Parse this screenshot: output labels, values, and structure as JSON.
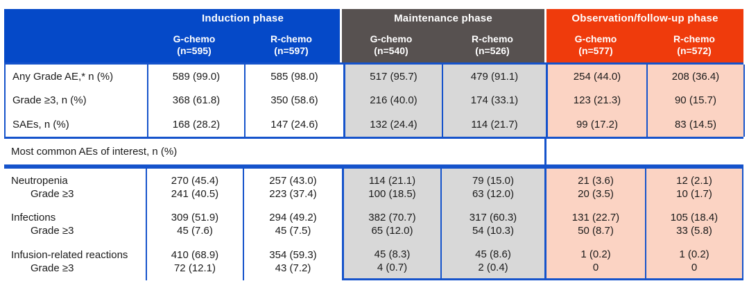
{
  "table": {
    "colors": {
      "induction_header": "#0549c8",
      "maintenance_header": "#575150",
      "observation_header": "#ef3b0c",
      "maintenance_cell": "#d8d8d8",
      "observation_cell": "#fbd3c3",
      "border_line": "#1553cb",
      "header_text": "#ffffff",
      "body_text": "#1a1a1a"
    },
    "phases": [
      {
        "name": "Induction phase",
        "columns": [
          {
            "arm": "G-chemo",
            "n": "(n=595)"
          },
          {
            "arm": "R-chemo",
            "n": "(n=597)"
          }
        ]
      },
      {
        "name": "Maintenance phase",
        "columns": [
          {
            "arm": "G-chemo",
            "n": "(n=540)"
          },
          {
            "arm": "R-chemo",
            "n": "(n=526)"
          }
        ]
      },
      {
        "name": "Observation/follow-up phase",
        "columns": [
          {
            "arm": "G-chemo",
            "n": "(n=577)"
          },
          {
            "arm": "R-chemo",
            "n": "(n=572)"
          }
        ]
      }
    ],
    "summary_rows": [
      {
        "label": "Any Grade AE,* n (%)",
        "values": [
          "589 (99.0)",
          "585 (98.0)",
          "517 (95.7)",
          "479 (91.1)",
          "254 (44.0)",
          "208 (36.4)"
        ]
      },
      {
        "label": "Grade ≥3, n (%)",
        "values": [
          "368 (61.8)",
          "350 (58.6)",
          "216 (40.0)",
          "174 (33.1)",
          "123 (21.3)",
          "90 (15.7)"
        ]
      },
      {
        "label": "SAEs, n (%)",
        "values": [
          "168 (28.2)",
          "147 (24.6)",
          "132 (24.4)",
          "114 (21.7)",
          "99 (17.2)",
          "83 (14.5)"
        ]
      }
    ],
    "section_header": "Most common AEs of interest, n (%)",
    "ae_rows": [
      {
        "label": "Neutropenia",
        "sublabel": "Grade ≥3",
        "values": [
          "270 (45.4)",
          "257 (43.0)",
          "114 (21.1)",
          "79 (15.0)",
          "21 (3.6)",
          "12 (2.1)"
        ],
        "sub_values": [
          "241 (40.5)",
          "223 (37.4)",
          "100 (18.5)",
          "63 (12.0)",
          "20 (3.5)",
          "10 (1.7)"
        ]
      },
      {
        "label": "Infections",
        "sublabel": "Grade ≥3",
        "values": [
          "309 (51.9)",
          "294 (49.2)",
          "382 (70.7)",
          "317 (60.3)",
          "131 (22.7)",
          "105 (18.4)"
        ],
        "sub_values": [
          "45 (7.6)",
          "45 (7.5)",
          "65 (12.0)",
          "54 (10.3)",
          "50 (8.7)",
          "33 (5.8)"
        ]
      },
      {
        "label": "Infusion-related reactions",
        "sublabel": "Grade ≥3",
        "values": [
          "410 (68.9)",
          "354 (59.3)",
          "45 (8.3)",
          "45 (8.6)",
          "1 (0.2)",
          "1 (0.2)"
        ],
        "sub_values": [
          "72 (12.1)",
          "43 (7.2)",
          "4 (0.7)",
          "2 (0.4)",
          "0",
          "0"
        ]
      }
    ]
  }
}
